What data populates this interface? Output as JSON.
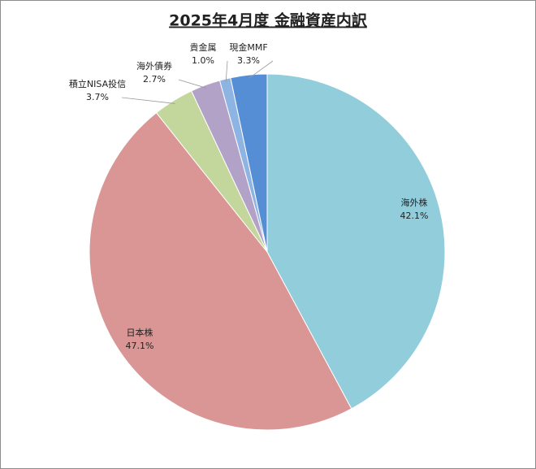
{
  "chart_data": {
    "type": "pie",
    "title": "2025年4月度  金融資産内訳",
    "categories": [
      "海外株",
      "日本株",
      "積立NISA投信",
      "海外債券",
      "貴金属",
      "現金MMF"
    ],
    "values": [
      42.1,
      47.1,
      3.7,
      2.7,
      1.0,
      3.3
    ],
    "value_labels": [
      "42.1%",
      "47.1%",
      "3.7%",
      "2.7%",
      "1.0%",
      "3.3%"
    ],
    "colors": [
      "#92cddc",
      "#d99694",
      "#c3d69b",
      "#b3a2c7",
      "#8eb4e3",
      "#558ed5"
    ]
  }
}
